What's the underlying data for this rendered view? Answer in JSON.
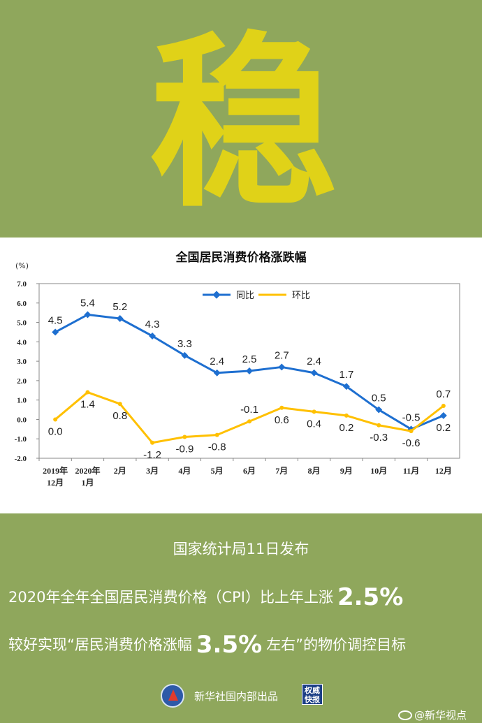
{
  "header": {
    "big_char": "稳"
  },
  "chart_data": {
    "type": "line",
    "title": "全国居民消费价格涨跌幅",
    "unit_label": "(%)",
    "categories": [
      [
        "2019年",
        "12月"
      ],
      [
        "2020年",
        "1月"
      ],
      [
        "2月"
      ],
      [
        "3月"
      ],
      [
        "4月"
      ],
      [
        "5月"
      ],
      [
        "6月"
      ],
      [
        "7月"
      ],
      [
        "8月"
      ],
      [
        "9月"
      ],
      [
        "10月"
      ],
      [
        "11月"
      ],
      [
        "12月"
      ]
    ],
    "ylim": [
      -2.0,
      7.0
    ],
    "yticks": [
      "7.0",
      "6.0",
      "5.0",
      "4.0",
      "3.0",
      "2.0",
      "1.0",
      "0.0",
      "-1.0",
      "-2.0"
    ],
    "grid": false,
    "legend_position": "top",
    "series": [
      {
        "name": "同比",
        "color": "#1e6fd0",
        "values": [
          4.5,
          5.4,
          5.2,
          4.3,
          3.3,
          2.4,
          2.5,
          2.7,
          2.4,
          1.7,
          0.5,
          -0.5,
          0.2
        ],
        "labels": [
          "4.5",
          "5.4",
          "5.2",
          "4.3",
          "3.3",
          "2.4",
          "2.5",
          "2.7",
          "2.4",
          "1.7",
          "0.5",
          "-0.5",
          "0.2"
        ]
      },
      {
        "name": "环比",
        "color": "#ffc000",
        "values": [
          0.0,
          1.4,
          0.8,
          -1.2,
          -0.9,
          -0.8,
          -0.1,
          0.6,
          0.4,
          0.2,
          -0.3,
          -0.6,
          0.7
        ],
        "labels": [
          "0.0",
          "1.4",
          "0.8",
          "-1.2",
          "-0.9",
          "-0.8",
          "-0.1",
          "0.6",
          "0.4",
          "0.2",
          "-0.3",
          "-0.6",
          "0.7"
        ]
      }
    ]
  },
  "text": {
    "release": "国家统计局11日发布",
    "line1_prefix": "2020年全年全国居民消费价格（CPI）比上年上涨",
    "line1_value": "2.5%",
    "line2_prefix": "较好实现“居民消费价格涨幅",
    "line2_value": "3.5%",
    "line2_suffix": "左右”的物价调控目标"
  },
  "footer": {
    "publisher": "新华社国内部出品",
    "badge_text": "权威快报",
    "weibo": "@新华视点"
  }
}
